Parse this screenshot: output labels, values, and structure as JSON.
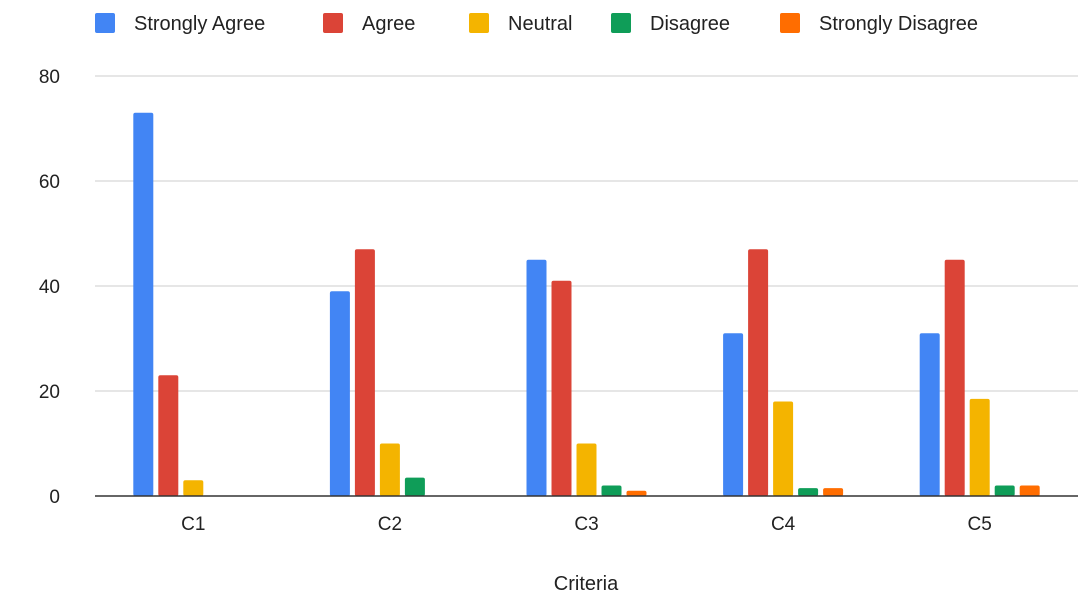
{
  "chart_data": {
    "type": "bar",
    "title": "",
    "xlabel": "Criteria",
    "ylabel": "",
    "categories": [
      "C1",
      "C2",
      "C3",
      "C4",
      "C5"
    ],
    "ylim": [
      0,
      80
    ],
    "yticks": [
      0,
      20,
      40,
      60,
      80
    ],
    "grid": true,
    "legend_position": "top",
    "series": [
      {
        "name": "Strongly Agree",
        "color": "#4285F4",
        "values": [
          73,
          39,
          45,
          31,
          31
        ]
      },
      {
        "name": "Agree",
        "color": "#DB4437",
        "values": [
          23,
          47,
          41,
          47,
          45
        ]
      },
      {
        "name": "Neutral",
        "color": "#F4B400",
        "values": [
          3,
          10,
          10,
          18,
          18.5
        ]
      },
      {
        "name": "Disagree",
        "color": "#0F9D58",
        "values": [
          0,
          3.5,
          2,
          1.5,
          2
        ]
      },
      {
        "name": "Strongly Disagree",
        "color": "#FF6D00",
        "values": [
          0,
          0,
          1,
          1.5,
          2
        ]
      }
    ]
  }
}
